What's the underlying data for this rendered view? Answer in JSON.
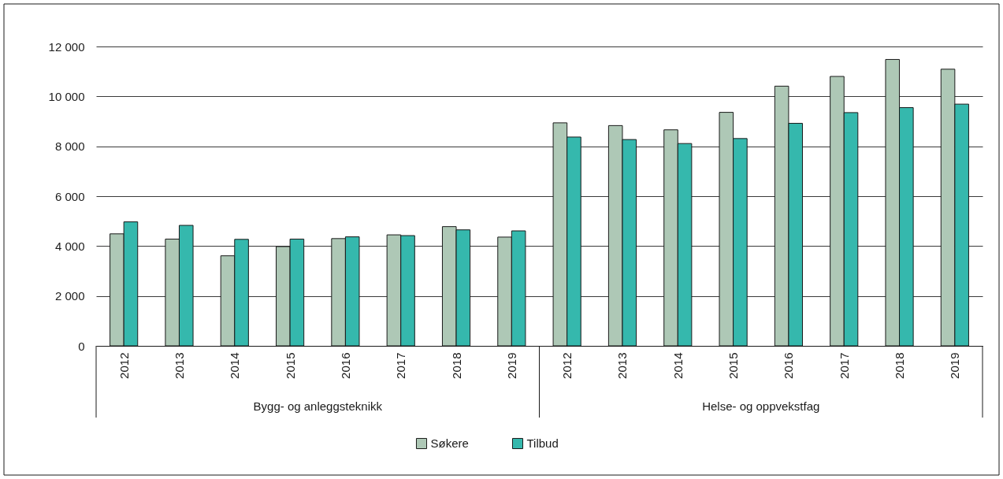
{
  "chart_data": {
    "type": "bar",
    "categories": [
      "2012",
      "2013",
      "2014",
      "2015",
      "2016",
      "2017",
      "2018",
      "2019",
      "2012",
      "2013",
      "2014",
      "2015",
      "2016",
      "2017",
      "2018",
      "2019"
    ],
    "series": [
      {
        "name": "Søkere",
        "color": "#aec8b6",
        "values": [
          4490,
          4280,
          3610,
          3980,
          4300,
          4450,
          4780,
          4360,
          8940,
          8830,
          8660,
          9360,
          10410,
          10800,
          11480,
          11090
        ]
      },
      {
        "name": "Tilbud",
        "color": "#35b8ad",
        "values": [
          4970,
          4830,
          4270,
          4280,
          4370,
          4420,
          4650,
          4610,
          8370,
          8270,
          8110,
          8310,
          8920,
          9350,
          9550,
          9690
        ]
      }
    ],
    "ylim": [
      0,
      12000
    ],
    "yticks": [
      0,
      {
        "value": 2000,
        "label": "2 000"
      },
      {
        "value": 4000,
        "label": "4 000"
      },
      {
        "value": 6000,
        "label": "6 000"
      },
      {
        "value": 8000,
        "label": "8 000"
      },
      {
        "value": 10000,
        "label": "10 000"
      },
      {
        "value": 12000,
        "label": "12 000"
      }
    ],
    "grid": "y",
    "legend": "bottom",
    "annotations": [
      "Bygg- og anleggsteknikk",
      "Helse- og oppvekstfag"
    ]
  }
}
